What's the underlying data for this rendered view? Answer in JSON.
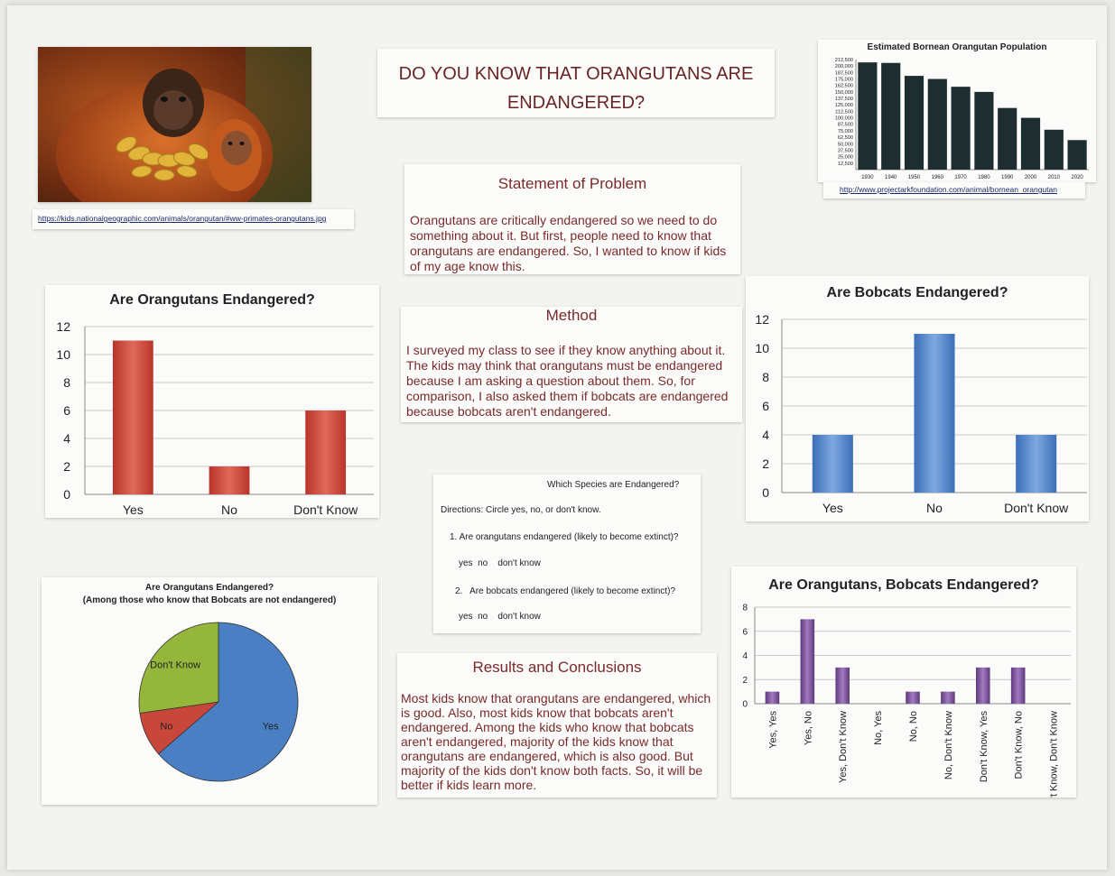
{
  "poster_title": "DO YOU KNOW THAT ORANGUTANS ARE ENDANGERED?",
  "photo": {
    "caption": "https://kids.nationalgeographic.com/animals/orangutan/#ww-primates-orangutans.jpg"
  },
  "statement": {
    "heading": "Statement of Problem",
    "body": "Orangutans are critically endangered so we need to do something about it. But first, people need to know that orangutans are endangered. So, I wanted to know if kids of my age know this."
  },
  "method": {
    "heading": "Method",
    "body": "I surveyed my class to see if they know anything about it. The kids may think that orangutans must be endangered because I am asking a question about them. So, for comparison, I also asked them if bobcats are endangered because bobcats aren't endangered."
  },
  "survey": {
    "title": "Which Species are Endangered?",
    "directions": "Directions: Circle yes, no, or don't know.",
    "q1": "1. Are orangutans endangered (likely to become extinct)?",
    "a1": "yes  no    don't know",
    "q2": "2.   Are bobcats endangered (likely to become extinct)?",
    "a2": "yes  no    don't know"
  },
  "results": {
    "heading": "Results and Conclusions",
    "body": "Most kids know that orangutans are endangered, which is good. Also, most kids know that bobcats aren't endangered. Among the kids who know that bobcats aren't endangered, majority of the kids know that orangutans are endangered, which is also good. But majority of the kids don't know both facts. So, it will be better if kids learn more."
  },
  "pop_source": "http://www.projectarkfoundation.com/animal/bornean_orangutan",
  "colors": {
    "red": "#c9473a",
    "blue": "#4a7fc4",
    "purple": "#7a4f93",
    "dark": "#1d2d30",
    "green": "#93b63b",
    "text": "#7a2a2a"
  },
  "chart_data": [
    {
      "id": "population",
      "type": "bar",
      "title": "Estimated Bornean Orangutan Population",
      "categories": [
        "1930",
        "1940",
        "1950",
        "1960",
        "1970",
        "1980",
        "1990",
        "2000",
        "2010",
        "2020"
      ],
      "values": [
        207000,
        206000,
        181000,
        175000,
        160000,
        150000,
        119000,
        100000,
        77000,
        57000
      ],
      "yticks": [
        "212,500",
        "200,000",
        "187,500",
        "175,000",
        "162,500",
        "150,000",
        "137,500",
        "125,000",
        "112,500",
        "100,000",
        "87,500",
        "75,000",
        "62,500",
        "50,000",
        "37,500",
        "25,000",
        "12,500"
      ],
      "ylim": [
        0,
        212500
      ]
    },
    {
      "id": "orangutans",
      "type": "bar",
      "title": "Are Orangutans Endangered?",
      "categories": [
        "Yes",
        "No",
        "Don't Know"
      ],
      "values": [
        11,
        2,
        6
      ],
      "yticks": [
        "12",
        "10",
        "8",
        "6",
        "4",
        "2",
        "0"
      ],
      "ylim": [
        0,
        12
      ]
    },
    {
      "id": "bobcats",
      "type": "bar",
      "title": "Are Bobcats Endangered?",
      "categories": [
        "Yes",
        "No",
        "Don't Know"
      ],
      "values": [
        4,
        11,
        4
      ],
      "yticks": [
        "12",
        "10",
        "8",
        "6",
        "4",
        "2",
        "0"
      ],
      "ylim": [
        0,
        12
      ]
    },
    {
      "id": "pie",
      "type": "pie",
      "title": "Are Orangutans Endangered?",
      "subtitle": "(Among those who know that Bobcats are not endangered)",
      "labels": [
        "Yes",
        "No",
        "Don't Know"
      ],
      "values": [
        7,
        1,
        3
      ]
    },
    {
      "id": "combined",
      "type": "bar",
      "title": "Are Orangutans, Bobcats Endangered?",
      "categories": [
        "Yes, Yes",
        "Yes, No",
        "Yes, Don't Know",
        "No, Yes",
        "No, No",
        "No, Don't Know",
        "Don't Know, Yes",
        "Don't Know, No",
        "Don't Know, Don't Know"
      ],
      "values": [
        1,
        7,
        3,
        0,
        1,
        1,
        3,
        3,
        0
      ],
      "yticks": [
        "8",
        "6",
        "4",
        "2",
        "0"
      ],
      "ylim": [
        0,
        8
      ]
    }
  ]
}
